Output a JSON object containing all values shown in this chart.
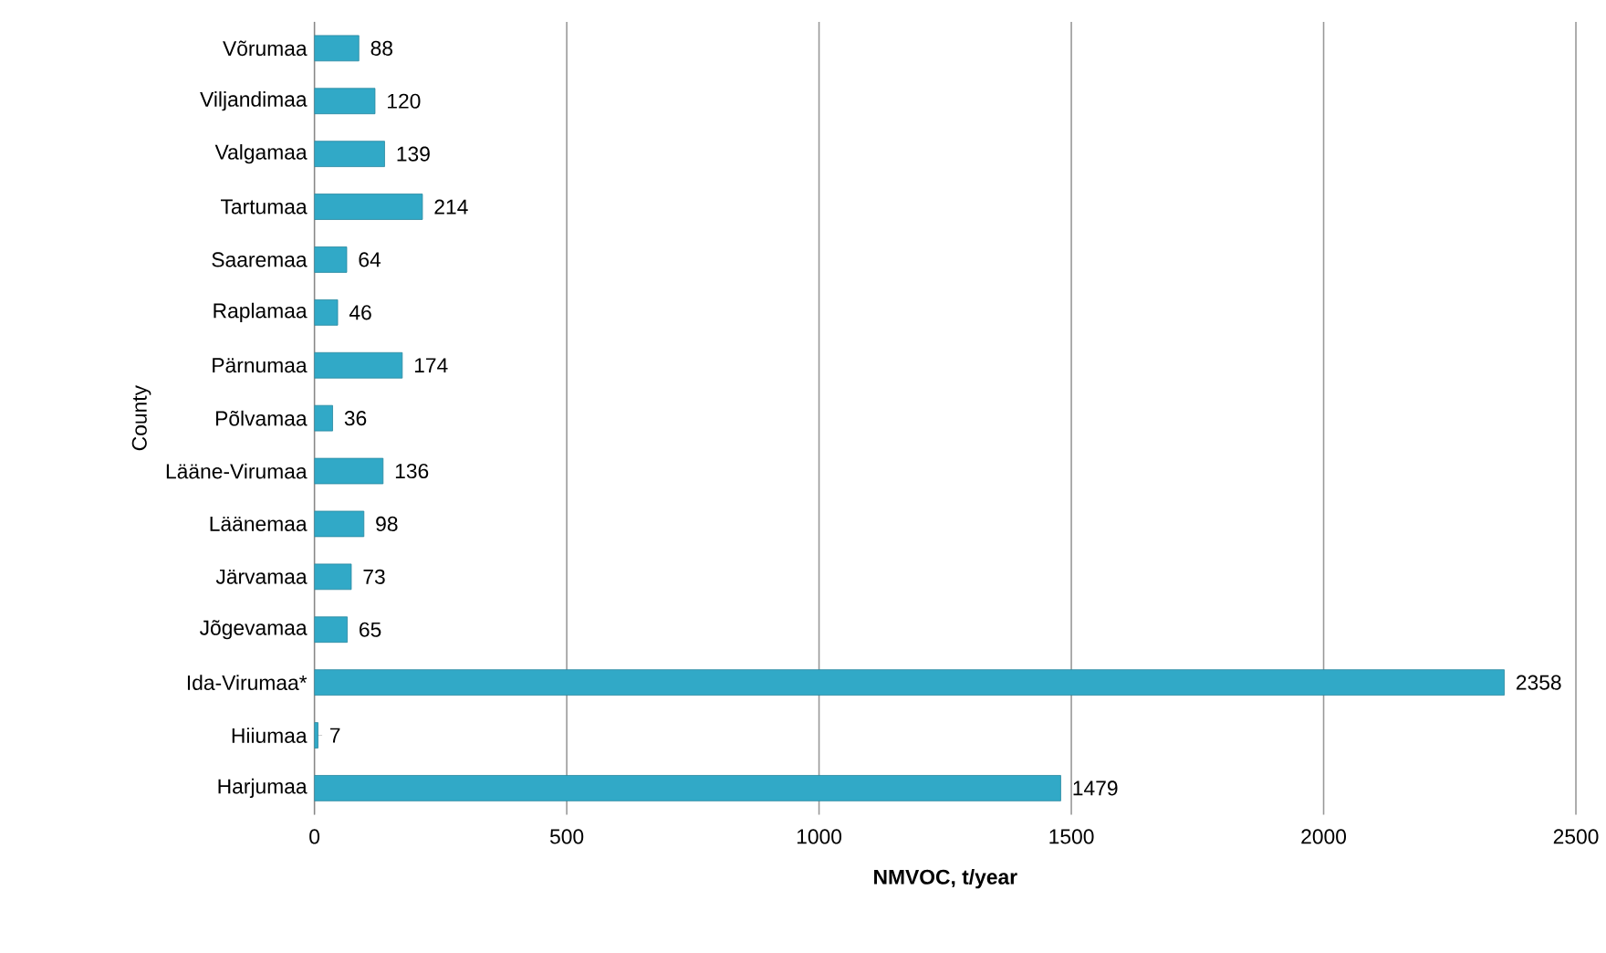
{
  "chart_data": {
    "type": "bar",
    "orientation": "horizontal",
    "xlabel": "NMVOC, t/year",
    "ylabel": "County",
    "categories": [
      "Võrumaa",
      "Viljandimaa",
      "Valgamaa",
      "Tartumaa",
      "Saaremaa",
      "Raplamaa",
      "Pärnumaa",
      "Põlvamaa",
      "Lääne-Virumaa",
      "Läänemaa",
      "Järvamaa",
      "Jõgevamaa",
      "Ida-Virumaa*",
      "Hiiumaa",
      "Harjumaa"
    ],
    "values": [
      88,
      120,
      139,
      214,
      64,
      46,
      174,
      36,
      136,
      98,
      73,
      65,
      2358,
      7,
      1479
    ],
    "color": "#31a9c7",
    "xlim": [
      0,
      2500
    ],
    "xticks": [
      0,
      500,
      1000,
      1500,
      2000,
      2500
    ],
    "grid": "x",
    "data_labels": true
  }
}
